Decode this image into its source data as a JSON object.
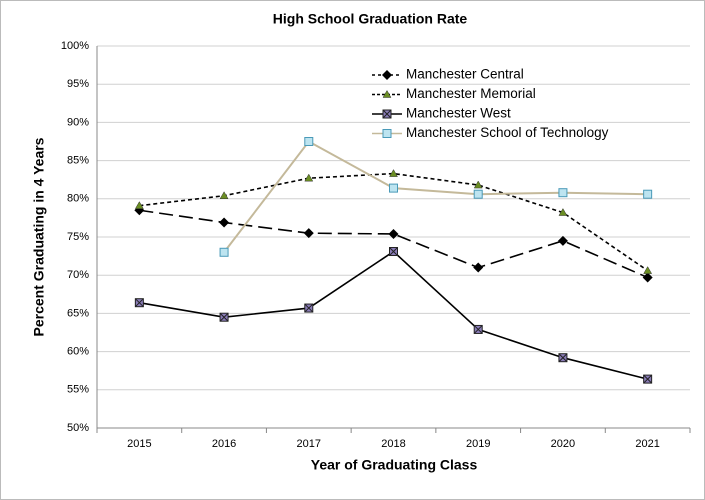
{
  "chart_data": {
    "type": "line",
    "title": "High School Graduation Rate",
    "xlabel": "Year of Graduating Class",
    "ylabel": "Percent Graduating in 4 Years",
    "categories": [
      "2015",
      "2016",
      "2017",
      "2018",
      "2019",
      "2020",
      "2021"
    ],
    "series": [
      {
        "name": "Manchester Central",
        "color": "#000000",
        "dash": "14 6",
        "marker": "diamond",
        "marker_color": "#000000",
        "values": [
          78.5,
          76.9,
          75.5,
          75.4,
          71.0,
          74.5,
          69.7
        ]
      },
      {
        "name": "Manchester Memorial",
        "color": "#000000",
        "dash": "4 3",
        "marker": "triangle",
        "marker_color": "#6b8e23",
        "values": [
          79.1,
          80.4,
          82.7,
          83.3,
          81.8,
          78.2,
          70.6
        ]
      },
      {
        "name": "Manchester West",
        "color": "#000000",
        "dash": "none",
        "marker": "square-x",
        "marker_color": "#8a7cb8",
        "values": [
          66.4,
          64.5,
          65.7,
          73.1,
          62.9,
          59.2,
          56.4
        ]
      },
      {
        "name": "Manchester School of Technology",
        "color": "#c4b99a",
        "dash": "none",
        "marker": "square",
        "marker_color": "#bde4f0",
        "values": [
          null,
          73.0,
          87.5,
          81.4,
          80.6,
          80.8,
          80.6
        ]
      }
    ],
    "ylim": [
      50,
      100
    ],
    "yticks": [
      {
        "value": 50,
        "label": "50%"
      },
      {
        "value": 55,
        "label": "55%"
      },
      {
        "value": 60,
        "label": "60%"
      },
      {
        "value": 65,
        "label": "65%"
      },
      {
        "value": 70,
        "label": "70%"
      },
      {
        "value": 75,
        "label": "75%"
      },
      {
        "value": 80,
        "label": "80%"
      },
      {
        "value": 85,
        "label": "85%"
      },
      {
        "value": 90,
        "label": "90%"
      },
      {
        "value": 95,
        "label": "95%"
      },
      {
        "value": 100,
        "label": "100%"
      }
    ],
    "grid": true,
    "legend": "top-right"
  }
}
